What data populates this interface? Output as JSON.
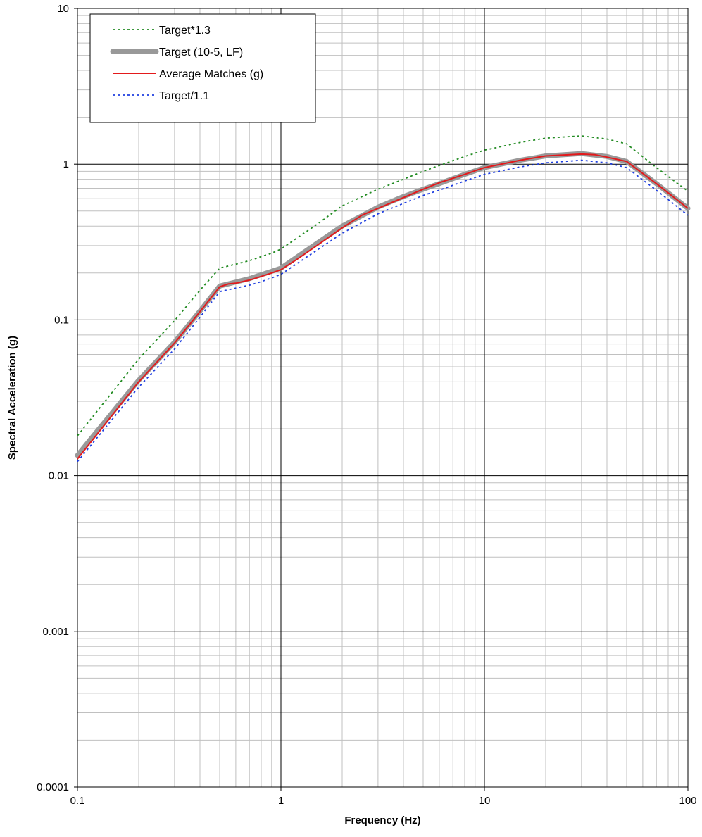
{
  "chart_data": {
    "type": "line",
    "title": "",
    "xlabel": "Frequency (Hz)",
    "ylabel": "Spectral Acceleration (g)",
    "x_scale": "log",
    "y_scale": "log",
    "xlim": [
      0.1,
      100
    ],
    "ylim": [
      0.0001,
      10
    ],
    "x_ticks": [
      {
        "value": 0.1,
        "label": "0.1"
      },
      {
        "value": 1,
        "label": "1"
      },
      {
        "value": 10,
        "label": "10"
      },
      {
        "value": 100,
        "label": "100"
      }
    ],
    "y_ticks": [
      {
        "value": 0.0001,
        "label": "0.0001"
      },
      {
        "value": 0.001,
        "label": "0.001"
      },
      {
        "value": 0.01,
        "label": "0.01"
      },
      {
        "value": 0.1,
        "label": "0.1"
      },
      {
        "value": 1,
        "label": "1"
      },
      {
        "value": 10,
        "label": "10"
      }
    ],
    "grid": true,
    "legend_position": "top-left",
    "series": [
      {
        "name": "Target*1.3",
        "color": "#228b22",
        "style": "dotted",
        "x": [
          0.1,
          0.2,
          0.3,
          0.4,
          0.5,
          0.6,
          0.7,
          0.8,
          0.9,
          1,
          1.5,
          2,
          3,
          4,
          5,
          6,
          8,
          10,
          15,
          20,
          30,
          40,
          50,
          70,
          100
        ],
        "values": [
          0.018,
          0.056,
          0.099,
          0.155,
          0.215,
          0.228,
          0.24,
          0.255,
          0.268,
          0.285,
          0.41,
          0.54,
          0.69,
          0.8,
          0.9,
          0.98,
          1.12,
          1.23,
          1.38,
          1.47,
          1.52,
          1.45,
          1.35,
          0.95,
          0.67
        ]
      },
      {
        "name": "Target (10-5, LF)",
        "color": "#999999",
        "style": "thick",
        "x": [
          0.1,
          0.2,
          0.3,
          0.4,
          0.5,
          0.6,
          0.7,
          0.8,
          0.9,
          1,
          1.5,
          2,
          3,
          4,
          5,
          6,
          8,
          10,
          15,
          20,
          30,
          40,
          50,
          70,
          100
        ],
        "values": [
          0.0135,
          0.041,
          0.072,
          0.114,
          0.165,
          0.175,
          0.184,
          0.195,
          0.205,
          0.215,
          0.31,
          0.4,
          0.53,
          0.62,
          0.69,
          0.75,
          0.86,
          0.95,
          1.06,
          1.13,
          1.17,
          1.12,
          1.04,
          0.75,
          0.52
        ]
      },
      {
        "name": "Average Matches (g)",
        "color": "#e31a1c",
        "style": "solid",
        "x": [
          0.1,
          0.2,
          0.3,
          0.4,
          0.5,
          0.55,
          0.6,
          0.7,
          0.8,
          0.9,
          1,
          1.2,
          1.5,
          2,
          2.5,
          3,
          4,
          5,
          6,
          8,
          10,
          15,
          20,
          30,
          35,
          40,
          50,
          70,
          100
        ],
        "values": [
          0.0128,
          0.04,
          0.071,
          0.113,
          0.163,
          0.17,
          0.172,
          0.18,
          0.19,
          0.2,
          0.21,
          0.245,
          0.3,
          0.39,
          0.47,
          0.52,
          0.61,
          0.69,
          0.76,
          0.86,
          0.95,
          1.06,
          1.13,
          1.16,
          1.15,
          1.11,
          1.04,
          0.75,
          0.52
        ]
      },
      {
        "name": "Target/1.1",
        "color": "#1f3fe0",
        "style": "dotted",
        "x": [
          0.1,
          0.2,
          0.3,
          0.4,
          0.5,
          0.6,
          0.7,
          0.8,
          0.9,
          1,
          1.5,
          2,
          3,
          4,
          5,
          6,
          8,
          10,
          15,
          20,
          30,
          40,
          50,
          70,
          100
        ],
        "values": [
          0.0123,
          0.037,
          0.065,
          0.104,
          0.152,
          0.16,
          0.167,
          0.176,
          0.186,
          0.196,
          0.28,
          0.36,
          0.48,
          0.56,
          0.63,
          0.68,
          0.78,
          0.86,
          0.96,
          1.02,
          1.06,
          1.02,
          0.95,
          0.68,
          0.47
        ]
      }
    ]
  }
}
